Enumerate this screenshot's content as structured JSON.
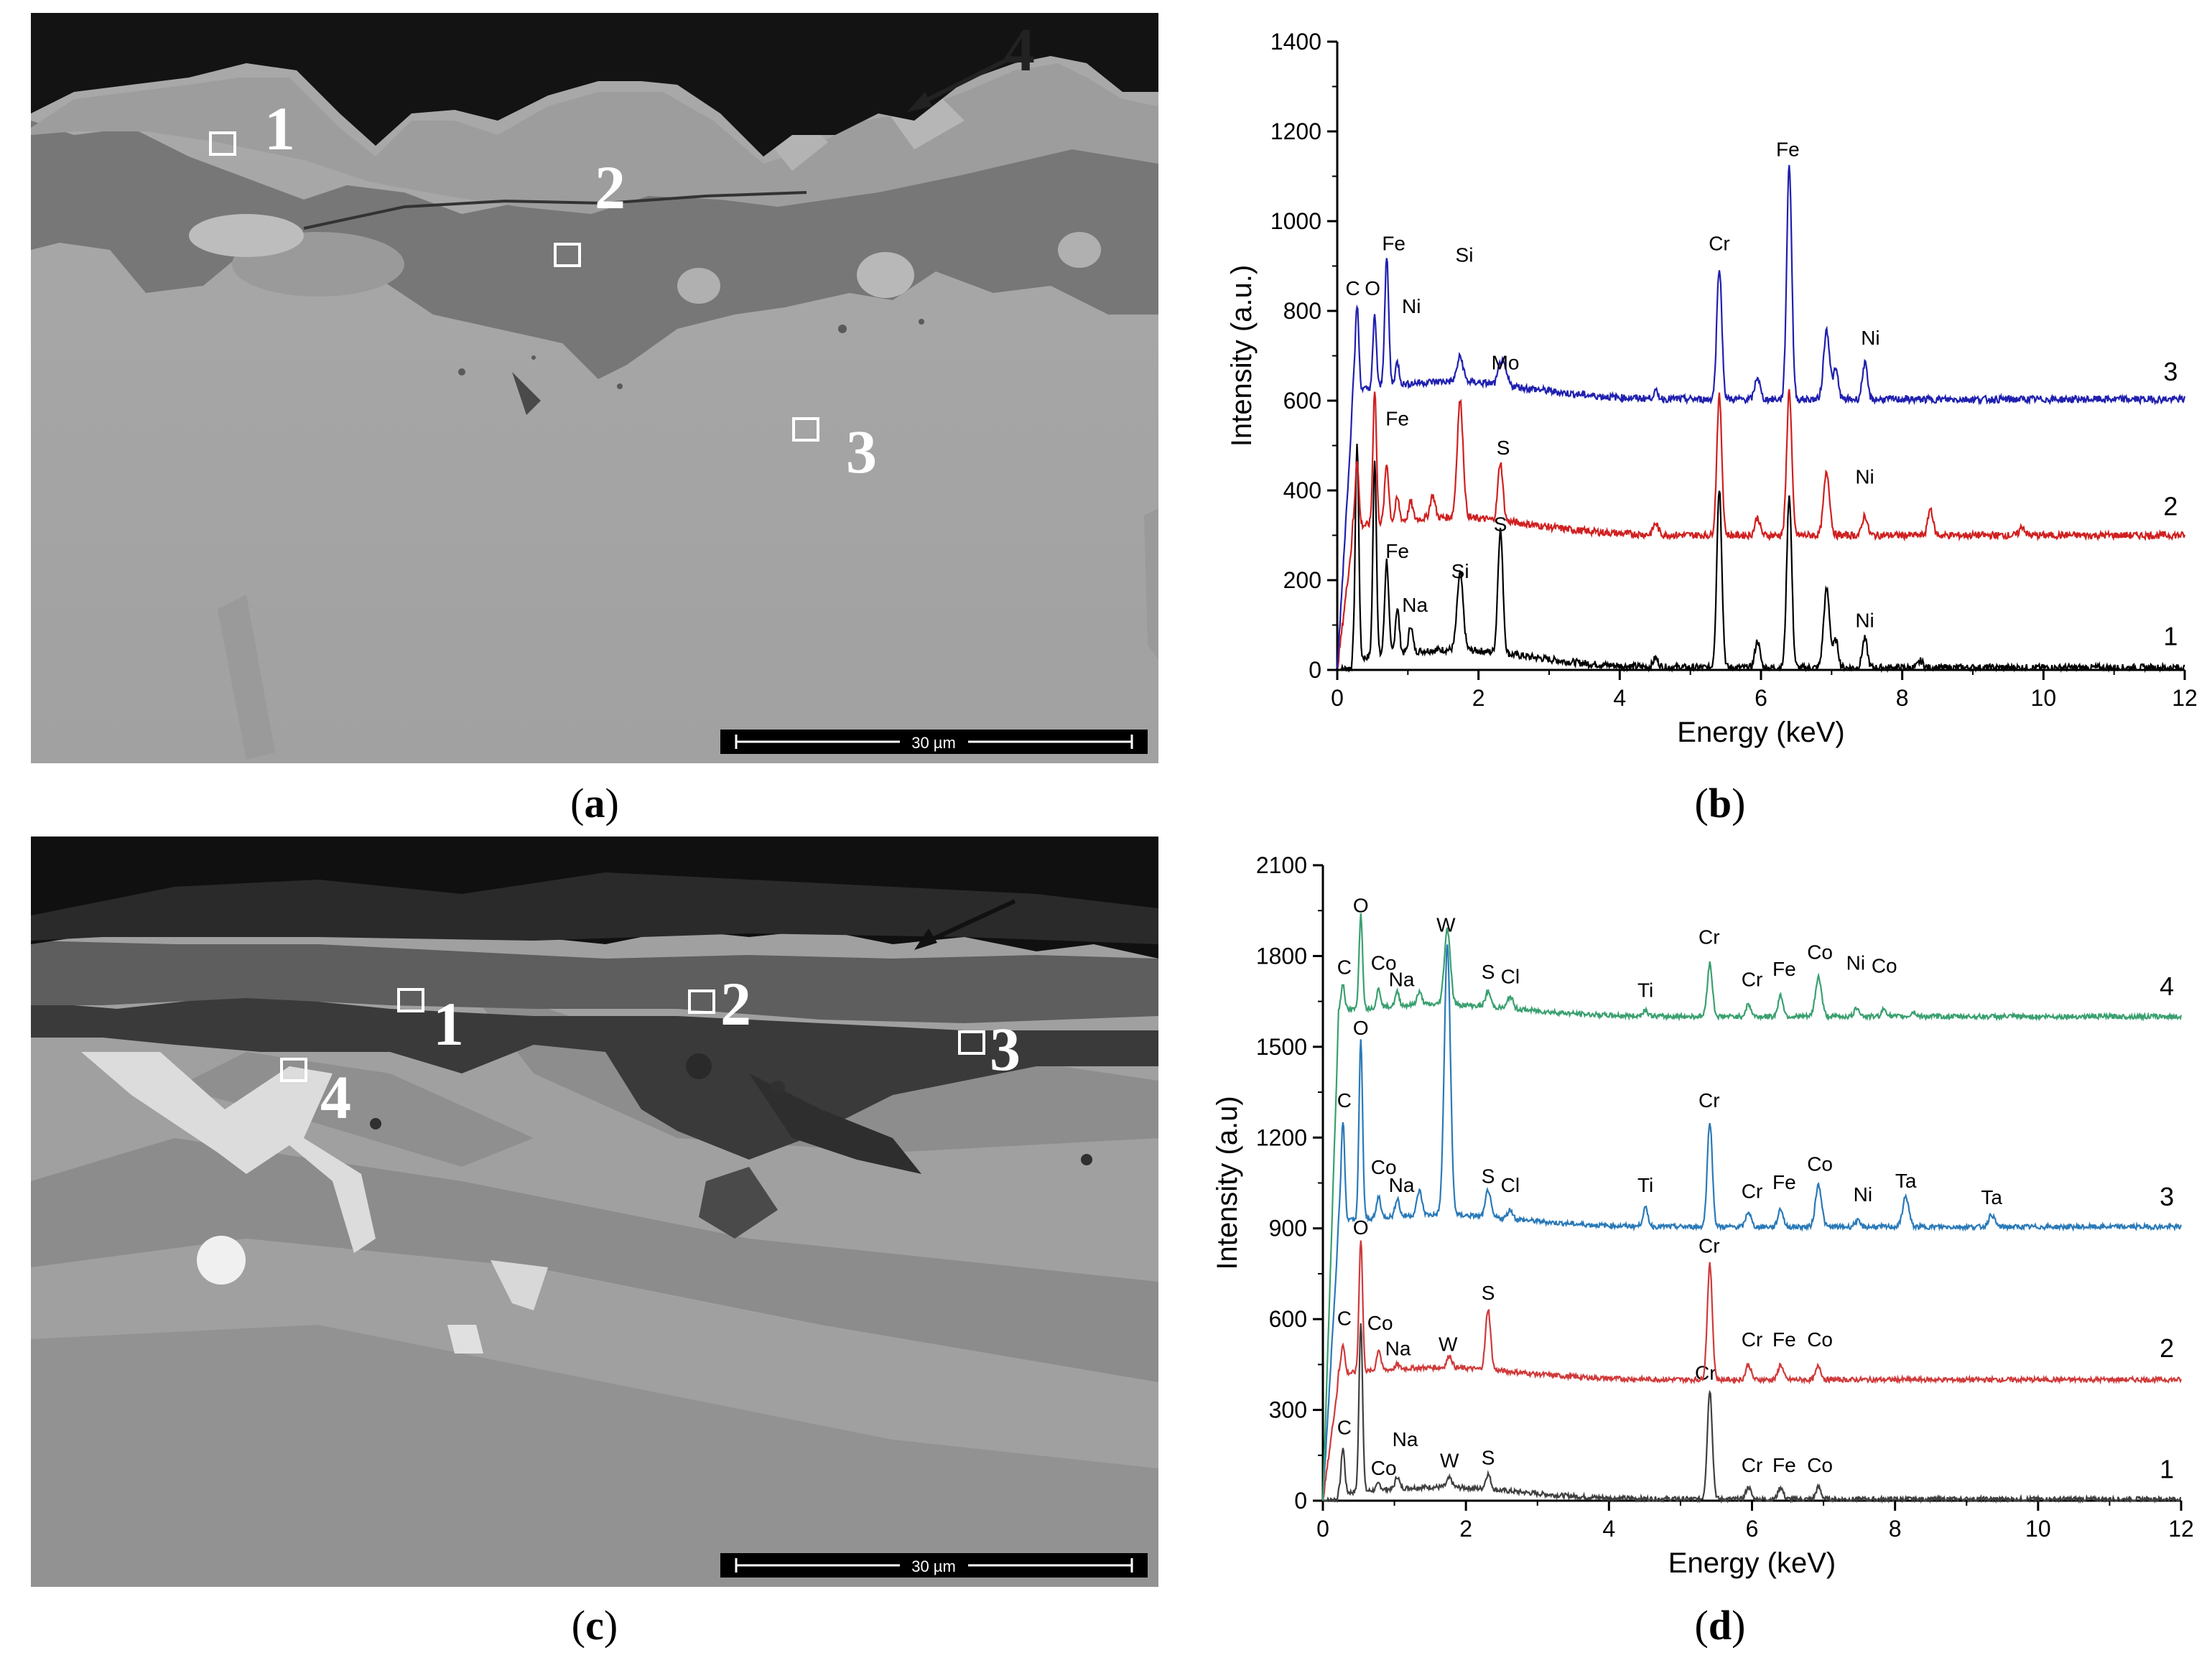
{
  "panels": {
    "a": {
      "caption_letter": "a",
      "scale_bar": "30 µm",
      "markers": [
        "1",
        "2",
        "3",
        "4"
      ]
    },
    "b": {
      "caption_letter": "b"
    },
    "c": {
      "caption_letter": "c",
      "scale_bar": "30 µm",
      "markers": [
        "1",
        "2",
        "3",
        "4"
      ]
    },
    "d": {
      "caption_letter": "d"
    }
  },
  "chart_data": [
    {
      "id": "b",
      "type": "line",
      "xlabel": "Energy (keV)",
      "ylabel": "Intensity (a.u.)",
      "xlim": [
        0,
        12
      ],
      "ylim": [
        0,
        1400
      ],
      "xticks": [
        0,
        2,
        4,
        6,
        8,
        10,
        12
      ],
      "yticks": [
        0,
        200,
        400,
        600,
        800,
        1000,
        1200,
        1400
      ],
      "series": [
        {
          "name": "1",
          "color": "#000000",
          "baseline": 5,
          "peaks": [
            [
              0.28,
              480,
              0.035
            ],
            [
              0.53,
              440,
              0.035
            ],
            [
              0.7,
              210,
              0.04
            ],
            [
              0.85,
              100,
              0.04
            ],
            [
              1.04,
              60,
              0.04
            ],
            [
              1.74,
              170,
              0.06
            ],
            [
              2.31,
              275,
              0.05
            ],
            [
              4.51,
              20,
              0.05
            ],
            [
              5.41,
              400,
              0.05
            ],
            [
              5.95,
              60,
              0.05
            ],
            [
              6.4,
              385,
              0.05
            ],
            [
              6.93,
              175,
              0.06
            ],
            [
              7.06,
              60,
              0.05
            ],
            [
              7.47,
              65,
              0.05
            ],
            [
              8.26,
              15,
              0.05
            ]
          ],
          "labels": [
            {
              "text": "Fe",
              "x": 0.85,
              "y": 250
            },
            {
              "text": "Na",
              "x": 1.1,
              "y": 130
            },
            {
              "text": "Si",
              "x": 1.74,
              "y": 205
            },
            {
              "text": "S",
              "x": 2.31,
              "y": 310
            },
            {
              "text": "Ni",
              "x": 7.47,
              "y": 95
            },
            {
              "text": "1",
              "x": 11.8,
              "y": 55
            }
          ]
        },
        {
          "name": "2",
          "color": "#d02020",
          "baseline": 300,
          "peaks": [
            [
              0.28,
              150,
              0.035
            ],
            [
              0.53,
              300,
              0.035
            ],
            [
              0.7,
              130,
              0.04
            ],
            [
              0.85,
              50,
              0.04
            ],
            [
              1.04,
              40,
              0.04
            ],
            [
              1.35,
              50,
              0.05
            ],
            [
              1.74,
              260,
              0.06
            ],
            [
              2.31,
              130,
              0.05
            ],
            [
              4.51,
              25,
              0.05
            ],
            [
              5.41,
              310,
              0.05
            ],
            [
              5.95,
              40,
              0.05
            ],
            [
              6.4,
              325,
              0.05
            ],
            [
              6.93,
              140,
              0.06
            ],
            [
              7.47,
              45,
              0.05
            ],
            [
              8.4,
              60,
              0.05
            ],
            [
              9.7,
              20,
              0.05
            ]
          ],
          "labels": [
            {
              "text": "Fe",
              "x": 0.85,
              "y": 545
            },
            {
              "text": "S",
              "x": 2.35,
              "y": 480
            },
            {
              "text": "Ni",
              "x": 7.47,
              "y": 415
            },
            {
              "text": "2",
              "x": 11.8,
              "y": 345
            }
          ]
        },
        {
          "name": "3",
          "color": "#2020b0",
          "baseline": 603,
          "peaks": [
            [
              0.28,
              190,
              0.035
            ],
            [
              0.53,
              160,
              0.035
            ],
            [
              0.7,
              285,
              0.04
            ],
            [
              0.85,
              50,
              0.04
            ],
            [
              1.74,
              55,
              0.06
            ],
            [
              2.31,
              40,
              0.05
            ],
            [
              2.37,
              30,
              0.06
            ],
            [
              4.51,
              15,
              0.05
            ],
            [
              5.41,
              295,
              0.05
            ],
            [
              5.95,
              50,
              0.05
            ],
            [
              6.4,
              525,
              0.05
            ],
            [
              6.93,
              155,
              0.06
            ],
            [
              7.06,
              65,
              0.05
            ],
            [
              7.47,
              80,
              0.05
            ]
          ],
          "labels": [
            {
              "text": "C",
              "x": 0.22,
              "y": 835
            },
            {
              "text": "O",
              "x": 0.5,
              "y": 835
            },
            {
              "text": "Fe",
              "x": 0.8,
              "y": 935
            },
            {
              "text": "Ni",
              "x": 1.05,
              "y": 795
            },
            {
              "text": "Si",
              "x": 1.8,
              "y": 910
            },
            {
              "text": "Mo",
              "x": 2.38,
              "y": 670
            },
            {
              "text": "Cr",
              "x": 5.41,
              "y": 935
            },
            {
              "text": "Fe",
              "x": 6.38,
              "y": 1145
            },
            {
              "text": "Ni",
              "x": 7.55,
              "y": 725
            },
            {
              "text": "3",
              "x": 11.8,
              "y": 645
            }
          ]
        }
      ]
    },
    {
      "id": "d",
      "type": "line",
      "xlabel": "Energy  (keV)",
      "ylabel": "Intensity  (a.u)",
      "xlim": [
        0,
        12
      ],
      "ylim": [
        0,
        2100
      ],
      "xticks": [
        0,
        2,
        4,
        6,
        8,
        10,
        12
      ],
      "yticks": [
        0,
        300,
        600,
        900,
        1200,
        1500,
        1800,
        2100
      ],
      "series": [
        {
          "name": "1",
          "color": "#404040",
          "baseline": 5,
          "peaks": [
            [
              0.28,
              150,
              0.035
            ],
            [
              0.53,
              560,
              0.035
            ],
            [
              0.78,
              20,
              0.04
            ],
            [
              1.04,
              40,
              0.04
            ],
            [
              1.77,
              30,
              0.05
            ],
            [
              2.31,
              50,
              0.05
            ],
            [
              5.41,
              360,
              0.05
            ],
            [
              5.95,
              40,
              0.05
            ],
            [
              6.4,
              40,
              0.05
            ],
            [
              6.93,
              40,
              0.05
            ]
          ],
          "labels": [
            {
              "text": "C",
              "x": 0.3,
              "y": 220
            },
            {
              "text": "Na",
              "x": 1.15,
              "y": 180
            },
            {
              "text": "Co",
              "x": 0.85,
              "y": 85
            },
            {
              "text": "W",
              "x": 1.77,
              "y": 110
            },
            {
              "text": "S",
              "x": 2.31,
              "y": 120
            },
            {
              "text": "Cr",
              "x": 5.35,
              "y": 400
            },
            {
              "text": "Cr",
              "x": 6.0,
              "y": 95
            },
            {
              "text": "Fe",
              "x": 6.45,
              "y": 95
            },
            {
              "text": "Co",
              "x": 6.95,
              "y": 95
            },
            {
              "text": "1",
              "x": 11.8,
              "y": 75
            }
          ]
        },
        {
          "name": "2",
          "color": "#d03a3a",
          "baseline": 400,
          "peaks": [
            [
              0.28,
              100,
              0.035
            ],
            [
              0.53,
              440,
              0.035
            ],
            [
              0.78,
              70,
              0.04
            ],
            [
              1.04,
              15,
              0.04
            ],
            [
              1.77,
              40,
              0.05
            ],
            [
              2.31,
              200,
              0.05
            ],
            [
              5.41,
              380,
              0.05
            ],
            [
              5.95,
              50,
              0.05
            ],
            [
              6.4,
              50,
              0.05
            ],
            [
              6.93,
              45,
              0.05
            ]
          ],
          "labels": [
            {
              "text": "C",
              "x": 0.3,
              "y": 580
            },
            {
              "text": "O",
              "x": 0.53,
              "y": 880
            },
            {
              "text": "Co",
              "x": 0.8,
              "y": 565
            },
            {
              "text": "Na",
              "x": 1.05,
              "y": 480
            },
            {
              "text": "W",
              "x": 1.75,
              "y": 495
            },
            {
              "text": "S",
              "x": 2.31,
              "y": 665
            },
            {
              "text": "Cr",
              "x": 5.4,
              "y": 820
            },
            {
              "text": "Cr",
              "x": 6.0,
              "y": 510
            },
            {
              "text": "Fe",
              "x": 6.45,
              "y": 510
            },
            {
              "text": "Co",
              "x": 6.95,
              "y": 510
            },
            {
              "text": "2",
              "x": 11.8,
              "y": 475
            }
          ]
        },
        {
          "name": "3",
          "color": "#2a7ab8",
          "baseline": 905,
          "peaks": [
            [
              0.28,
              330,
              0.035
            ],
            [
              0.53,
              590,
              0.035
            ],
            [
              0.78,
              70,
              0.04
            ],
            [
              1.04,
              60,
              0.04
            ],
            [
              1.35,
              80,
              0.05
            ],
            [
              1.74,
              890,
              0.06
            ],
            [
              2.31,
              90,
              0.05
            ],
            [
              2.62,
              30,
              0.05
            ],
            [
              4.51,
              60,
              0.05
            ],
            [
              5.41,
              350,
              0.05
            ],
            [
              5.95,
              50,
              0.05
            ],
            [
              6.4,
              60,
              0.05
            ],
            [
              6.93,
              140,
              0.06
            ],
            [
              7.47,
              20,
              0.05
            ],
            [
              8.15,
              100,
              0.06
            ],
            [
              9.35,
              40,
              0.06
            ]
          ],
          "labels": [
            {
              "text": "C",
              "x": 0.3,
              "y": 1300
            },
            {
              "text": "O",
              "x": 0.53,
              "y": 1540
            },
            {
              "text": "Co",
              "x": 0.85,
              "y": 1080
            },
            {
              "text": "Na",
              "x": 1.1,
              "y": 1020
            },
            {
              "text": "S",
              "x": 2.31,
              "y": 1050
            },
            {
              "text": "Cl",
              "x": 2.62,
              "y": 1020
            },
            {
              "text": "Ti",
              "x": 4.51,
              "y": 1020
            },
            {
              "text": "Cr",
              "x": 5.4,
              "y": 1300
            },
            {
              "text": "Cr",
              "x": 6.0,
              "y": 1000
            },
            {
              "text": "Fe",
              "x": 6.45,
              "y": 1030
            },
            {
              "text": "Co",
              "x": 6.95,
              "y": 1090
            },
            {
              "text": "Ni",
              "x": 7.55,
              "y": 990
            },
            {
              "text": "Ta",
              "x": 8.15,
              "y": 1035
            },
            {
              "text": "Ta",
              "x": 9.35,
              "y": 980
            },
            {
              "text": "3",
              "x": 11.8,
              "y": 975
            }
          ]
        },
        {
          "name": "4",
          "color": "#3aa070",
          "baseline": 1600,
          "peaks": [
            [
              0.28,
              90,
              0.035
            ],
            [
              0.53,
              310,
              0.035
            ],
            [
              0.78,
              60,
              0.04
            ],
            [
              1.04,
              45,
              0.04
            ],
            [
              1.35,
              40,
              0.05
            ],
            [
              1.74,
              250,
              0.06
            ],
            [
              2.31,
              50,
              0.05
            ],
            [
              2.62,
              40,
              0.05
            ],
            [
              4.51,
              20,
              0.05
            ],
            [
              5.41,
              175,
              0.05
            ],
            [
              5.95,
              40,
              0.05
            ],
            [
              6.4,
              70,
              0.05
            ],
            [
              6.93,
              130,
              0.06
            ],
            [
              7.47,
              30,
              0.05
            ],
            [
              7.85,
              25,
              0.05
            ],
            [
              8.26,
              15,
              0.05
            ]
          ],
          "labels": [
            {
              "text": "C",
              "x": 0.3,
              "y": 1740
            },
            {
              "text": "O",
              "x": 0.53,
              "y": 1945
            },
            {
              "text": "Co",
              "x": 0.85,
              "y": 1755
            },
            {
              "text": "Na",
              "x": 1.1,
              "y": 1700
            },
            {
              "text": "W",
              "x": 1.72,
              "y": 1880
            },
            {
              "text": "S",
              "x": 2.31,
              "y": 1725
            },
            {
              "text": "Cl",
              "x": 2.62,
              "y": 1710
            },
            {
              "text": "Ti",
              "x": 4.51,
              "y": 1665
            },
            {
              "text": "Cr",
              "x": 5.4,
              "y": 1840
            },
            {
              "text": "Cr",
              "x": 6.0,
              "y": 1700
            },
            {
              "text": "Fe",
              "x": 6.45,
              "y": 1735
            },
            {
              "text": "Co",
              "x": 6.95,
              "y": 1790
            },
            {
              "text": "Ni",
              "x": 7.45,
              "y": 1755
            },
            {
              "text": "Co",
              "x": 7.85,
              "y": 1745
            },
            {
              "text": "4",
              "x": 11.8,
              "y": 1670
            }
          ]
        }
      ]
    }
  ]
}
